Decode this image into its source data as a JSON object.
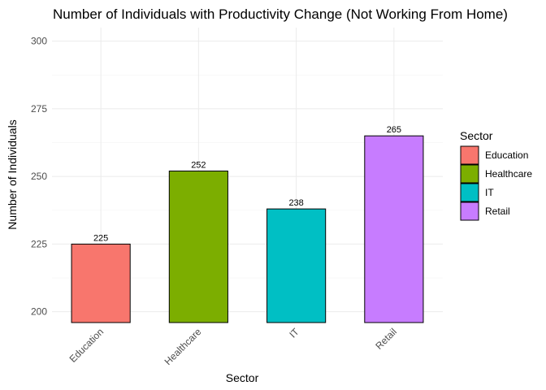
{
  "chart_data": {
    "type": "bar",
    "title": "Number of Individuals with Productivity Change (Not Working From Home)",
    "xlabel": "Sector",
    "ylabel": "Number of Individuals",
    "categories": [
      "Education",
      "Healthcare",
      "IT",
      "Retail"
    ],
    "values": [
      225,
      252,
      238,
      265
    ],
    "data_labels": [
      "225",
      "252",
      "238",
      "265"
    ],
    "colors": [
      "#F8766D",
      "#7CAE00",
      "#00BFC4",
      "#C77CFF"
    ],
    "ylim": [
      196,
      305
    ],
    "yticks": [
      200,
      225,
      250,
      275,
      300
    ],
    "grid": true,
    "legend": {
      "title": "Sector",
      "position": "right",
      "entries": [
        "Education",
        "Healthcare",
        "IT",
        "Retail"
      ]
    }
  }
}
